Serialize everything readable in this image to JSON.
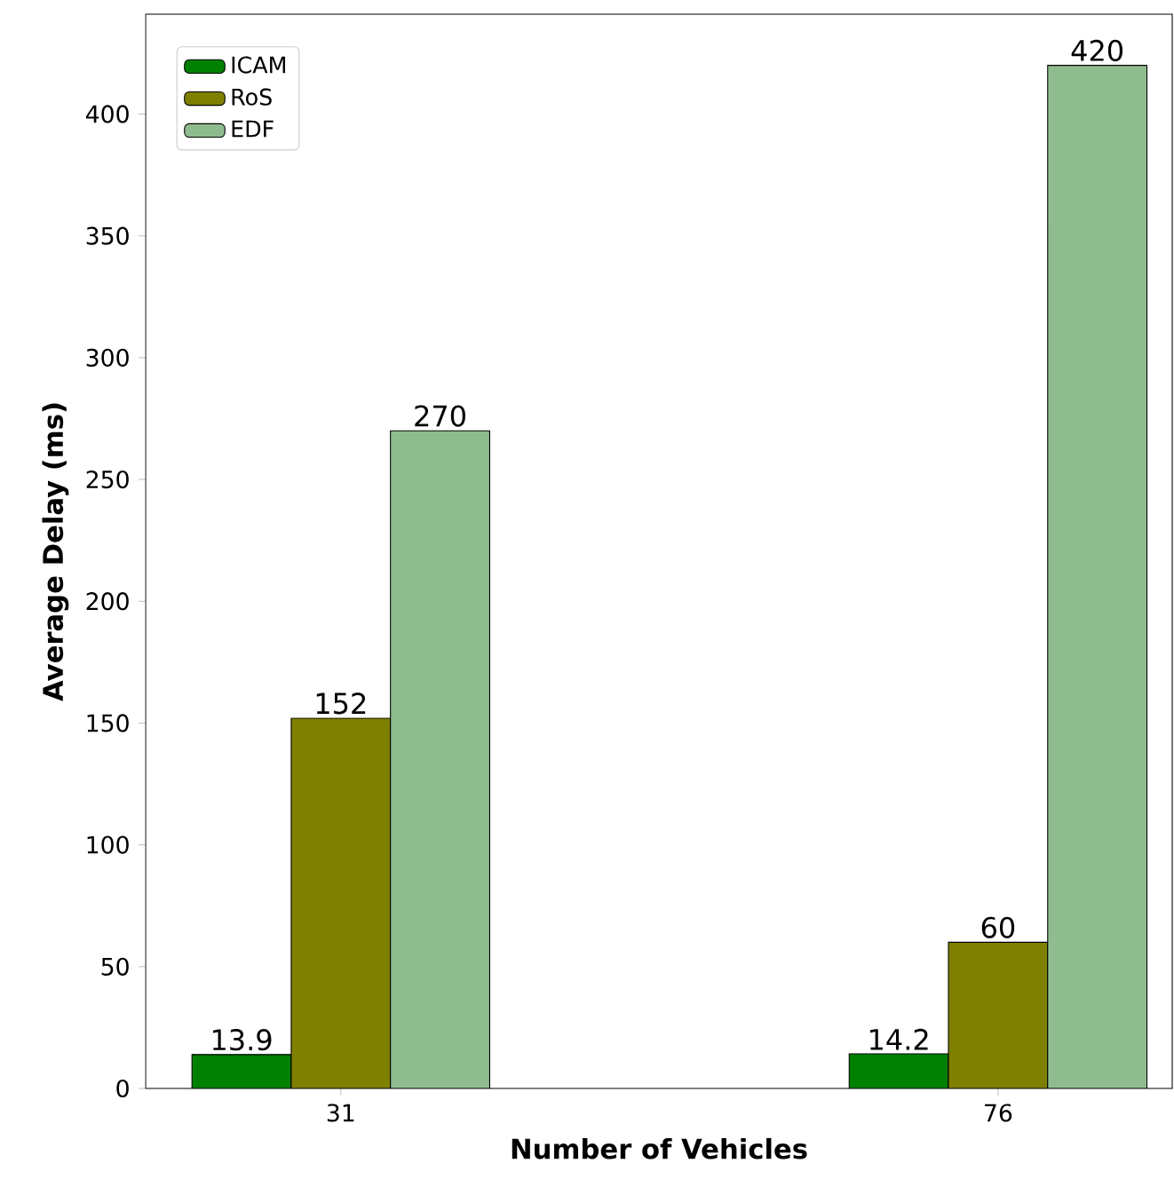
{
  "chart_data": {
    "type": "bar",
    "xlabel": "Number of Vehicles",
    "ylabel": "Average Delay (ms)",
    "categories": [
      "31",
      "76"
    ],
    "series": [
      {
        "name": "ICAM",
        "color": "#008000",
        "values": [
          13.9,
          14.2
        ]
      },
      {
        "name": "RoS",
        "color": "#808000",
        "values": [
          152,
          60
        ]
      },
      {
        "name": "EDF",
        "color": "#8fbc8f",
        "values": [
          270,
          420
        ]
      }
    ],
    "ylim": [
      0,
      441
    ],
    "yticks": [
      0,
      50,
      100,
      150,
      200,
      250,
      300,
      350,
      400
    ],
    "legend": "top left",
    "data_labels": true
  }
}
